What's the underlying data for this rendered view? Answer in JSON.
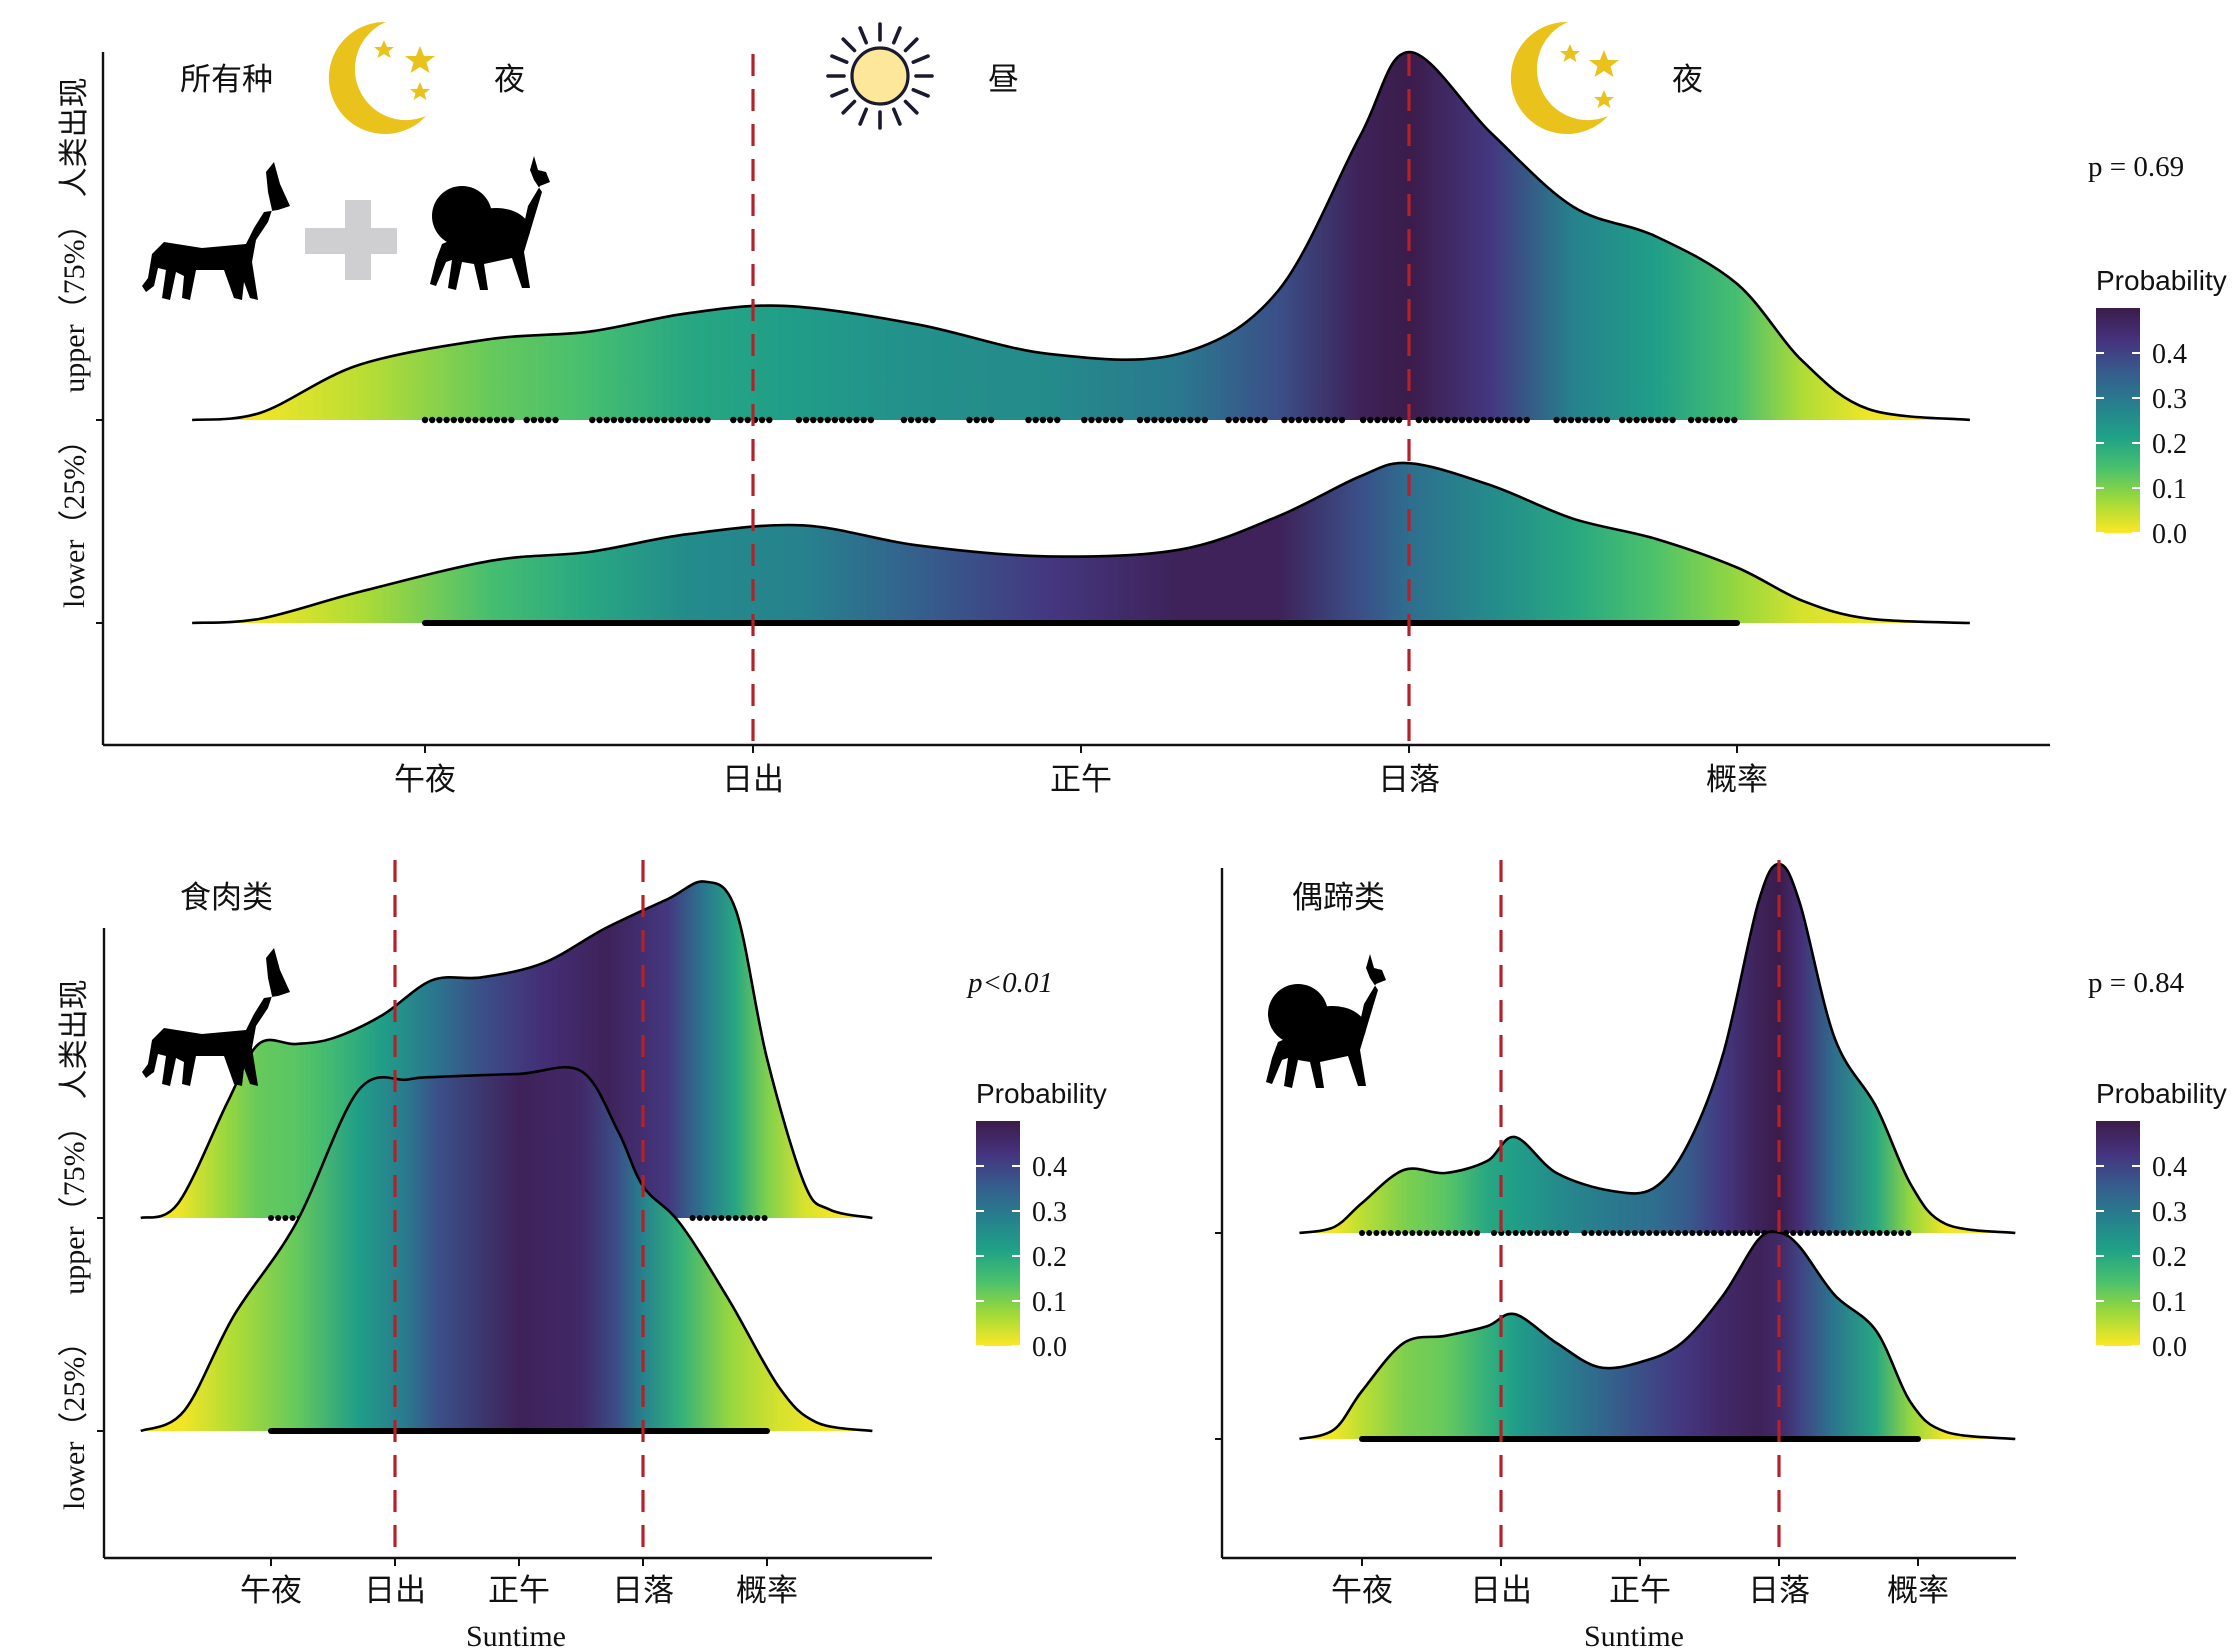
{
  "panels": [
    {
      "id": "all",
      "title": "所有种",
      "phase_labels": [
        "夜",
        "昼",
        "夜"
      ],
      "p_value": "p = 0.69",
      "chart_data": {
        "type": "ridgeline",
        "x_ticks": [
          "午夜",
          "日出",
          "正午",
          "日落",
          "概率"
        ],
        "xlabel": "",
        "ylabel": "人类出现",
        "y_categories": [
          "upper（75%）",
          "lower（25%）"
        ],
        "x_range": [
          -1,
          4.6
        ],
        "reference_lines": [
          1,
          3
        ],
        "series": [
          {
            "name": "upper（75%）",
            "x": [
              -0.71,
              -0.5,
              -0.2,
              0.2,
              0.5,
              0.8,
              1.1,
              1.5,
              1.9,
              2.3,
              2.6,
              2.85,
              3.0,
              3.25,
              3.5,
              3.75,
              4.0,
              4.2,
              4.4,
              4.71
            ],
            "density": [
              0.0,
              0.02,
              0.15,
              0.22,
              0.24,
              0.29,
              0.31,
              0.26,
              0.18,
              0.18,
              0.35,
              0.77,
              1.0,
              0.78,
              0.58,
              0.5,
              0.37,
              0.16,
              0.03,
              0.0
            ],
            "prob": [
              0.0,
              0.01,
              0.05,
              0.12,
              0.15,
              0.2,
              0.22,
              0.25,
              0.26,
              0.3,
              0.38,
              0.48,
              0.5,
              0.42,
              0.28,
              0.22,
              0.15,
              0.06,
              0.01,
              0.0
            ],
            "observation_bands": [
              [
                0.0,
                0.27
              ],
              [
                0.31,
                0.4
              ],
              [
                0.51,
                0.88
              ],
              [
                0.94,
                1.05
              ],
              [
                1.14,
                1.37
              ],
              [
                1.46,
                1.56
              ],
              [
                1.66,
                1.74
              ],
              [
                1.84,
                1.94
              ],
              [
                2.01,
                2.12
              ],
              [
                2.18,
                2.38
              ],
              [
                2.45,
                2.58
              ],
              [
                2.62,
                2.81
              ],
              [
                2.86,
                2.99
              ],
              [
                3.03,
                3.38
              ],
              [
                3.45,
                3.61
              ],
              [
                3.65,
                3.81
              ],
              [
                3.86,
                4.0
              ]
            ]
          },
          {
            "name": "lower（25%）",
            "x": [
              -0.71,
              -0.5,
              -0.2,
              0.2,
              0.5,
              0.8,
              1.15,
              1.5,
              1.9,
              2.3,
              2.6,
              2.85,
              3.0,
              3.25,
              3.5,
              3.75,
              4.0,
              4.2,
              4.4,
              4.71
            ],
            "density": [
              0.0,
              0.02,
              0.14,
              0.28,
              0.32,
              0.4,
              0.44,
              0.35,
              0.3,
              0.33,
              0.48,
              0.66,
              0.72,
              0.62,
              0.47,
              0.38,
              0.25,
              0.1,
              0.02,
              0.0
            ],
            "prob": [
              0.0,
              0.01,
              0.06,
              0.15,
              0.2,
              0.26,
              0.28,
              0.35,
              0.42,
              0.48,
              0.48,
              0.38,
              0.32,
              0.26,
              0.2,
              0.14,
              0.08,
              0.03,
              0.01,
              0.0
            ],
            "observation_bands": [
              [
                0.0,
                4.0
              ]
            ]
          }
        ]
      }
    },
    {
      "id": "carnivore",
      "title": "食肉类",
      "p_value": "p<0.01",
      "chart_data": {
        "type": "ridgeline",
        "x_ticks": [
          "午夜",
          "日出",
          "正午",
          "日落",
          "概率"
        ],
        "xlabel": "Suntime",
        "ylabel": "人类出现",
        "y_categories": [
          "upper（75%）",
          "lower（25%）"
        ],
        "x_range": [
          -1,
          4.6
        ],
        "reference_lines": [
          1,
          3
        ],
        "series": [
          {
            "name": "upper（75%）",
            "x": [
              -1.05,
              -0.75,
              -0.35,
              -0.1,
              0.2,
              0.5,
              0.9,
              1.3,
              1.7,
              2.2,
              2.7,
              3.2,
              3.5,
              3.75,
              4.0,
              4.3,
              4.5,
              4.85
            ],
            "density": [
              0.0,
              0.05,
              0.4,
              0.6,
              0.6,
              0.62,
              0.7,
              0.82,
              0.83,
              0.88,
              1.0,
              1.1,
              1.16,
              1.06,
              0.55,
              0.12,
              0.03,
              0.0
            ],
            "prob": [
              0.0,
              0.01,
              0.08,
              0.12,
              0.13,
              0.16,
              0.22,
              0.3,
              0.38,
              0.44,
              0.48,
              0.42,
              0.3,
              0.2,
              0.1,
              0.03,
              0.01,
              0.0
            ],
            "observation_bands": [
              [
                0.0,
                0.6
              ],
              [
                3.4,
                4.0
              ]
            ]
          },
          {
            "name": "lower（25%）",
            "x": [
              -1.05,
              -0.7,
              -0.3,
              0.2,
              0.7,
              1.1,
              1.35,
              2.0,
              2.5,
              2.8,
              3.0,
              3.3,
              3.7,
              4.1,
              4.4,
              4.85
            ],
            "density": [
              0.0,
              0.07,
              0.4,
              0.72,
              1.18,
              1.22,
              1.23,
              1.24,
              1.25,
              1.04,
              0.85,
              0.72,
              0.45,
              0.15,
              0.03,
              0.0
            ],
            "prob": [
              0.0,
              0.01,
              0.06,
              0.12,
              0.22,
              0.3,
              0.38,
              0.48,
              0.46,
              0.38,
              0.28,
              0.18,
              0.08,
              0.03,
              0.01,
              0.0
            ],
            "observation_bands": [
              [
                0.0,
                4.0
              ]
            ]
          }
        ]
      }
    },
    {
      "id": "ungulate",
      "title": "偶蹄类",
      "p_value": "p = 0.84",
      "chart_data": {
        "type": "ridgeline",
        "x_ticks": [
          "午夜",
          "日出",
          "正午",
          "日落",
          "概率"
        ],
        "xlabel": "Suntime",
        "ylabel": "人类出现",
        "y_categories": [
          "upper（75%）",
          "lower（25%）"
        ],
        "x_range": [
          -1,
          4.6
        ],
        "reference_lines": [
          1,
          3
        ],
        "series": [
          {
            "name": "upper（75%）",
            "x": [
              -0.45,
              -0.2,
              0.0,
              0.3,
              0.6,
              0.9,
              1.1,
              1.4,
              1.8,
              2.1,
              2.35,
              2.6,
              2.85,
              3.0,
              3.15,
              3.4,
              3.7,
              3.95,
              4.2,
              4.7
            ],
            "density": [
              0.0,
              0.02,
              0.1,
              0.21,
              0.2,
              0.24,
              0.32,
              0.2,
              0.14,
              0.15,
              0.3,
              0.6,
              1.1,
              1.23,
              1.1,
              0.65,
              0.42,
              0.16,
              0.03,
              0.0
            ],
            "prob": [
              0.0,
              0.01,
              0.05,
              0.1,
              0.13,
              0.2,
              0.22,
              0.26,
              0.3,
              0.32,
              0.36,
              0.42,
              0.48,
              0.5,
              0.44,
              0.32,
              0.2,
              0.08,
              0.01,
              0.0
            ],
            "observation_bands": [
              [
                0.0,
                0.85
              ],
              [
                0.95,
                1.5
              ],
              [
                1.6,
                3.95
              ]
            ]
          },
          {
            "name": "lower（25%）",
            "x": [
              -0.45,
              -0.2,
              0.0,
              0.3,
              0.6,
              0.9,
              1.1,
              1.4,
              1.7,
              2.0,
              2.3,
              2.6,
              2.85,
              3.0,
              3.15,
              3.4,
              3.7,
              3.95,
              4.2,
              4.7
            ],
            "density": [
              0.0,
              0.04,
              0.2,
              0.4,
              0.43,
              0.47,
              0.52,
              0.4,
              0.3,
              0.32,
              0.4,
              0.6,
              0.83,
              0.86,
              0.8,
              0.6,
              0.45,
              0.15,
              0.03,
              0.0
            ],
            "prob": [
              0.0,
              0.01,
              0.05,
              0.1,
              0.12,
              0.18,
              0.22,
              0.28,
              0.33,
              0.38,
              0.42,
              0.46,
              0.48,
              0.46,
              0.4,
              0.3,
              0.2,
              0.08,
              0.01,
              0.0
            ],
            "observation_bands": [
              [
                0.0,
                4.0
              ]
            ]
          }
        ]
      }
    }
  ],
  "legend": {
    "title": "Probability",
    "ticks": [
      "0.0",
      "0.1",
      "0.2",
      "0.3",
      "0.4"
    ],
    "range": [
      0,
      0.5
    ],
    "colors": [
      "#fde725",
      "#a0da39",
      "#4ac16d",
      "#1fa187",
      "#277f8e",
      "#365c8d",
      "#46327e",
      "#3b1c4a"
    ]
  },
  "colors": {
    "reference_line": "#b3222a",
    "moon": "#e9c21c",
    "sun_fill": "#fde79a",
    "sun_stroke": "#1a1a2e",
    "plus": "#cfcfd1",
    "silhouette": "#000000"
  },
  "icons": [
    "moon-stars-icon",
    "sun-icon",
    "dog-silhouette-icon",
    "deer-silhouette-icon",
    "plus-icon"
  ]
}
